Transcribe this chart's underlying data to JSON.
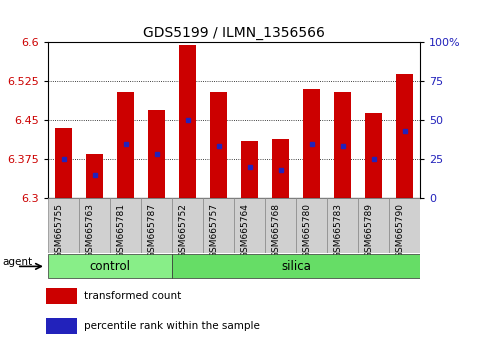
{
  "title": "GDS5199 / ILMN_1356566",
  "samples": [
    "GSM665755",
    "GSM665763",
    "GSM665781",
    "GSM665787",
    "GSM665752",
    "GSM665757",
    "GSM665764",
    "GSM665768",
    "GSM665780",
    "GSM665783",
    "GSM665789",
    "GSM665790"
  ],
  "groups": {
    "control": [
      0,
      1,
      2,
      3
    ],
    "silica": [
      4,
      5,
      6,
      7,
      8,
      9,
      10,
      11
    ]
  },
  "bar_tops": [
    6.435,
    6.385,
    6.505,
    6.47,
    6.595,
    6.505,
    6.41,
    6.415,
    6.51,
    6.505,
    6.465,
    6.54
  ],
  "bar_bottom": 6.3,
  "blue_dots": [
    6.375,
    6.345,
    6.405,
    6.385,
    6.45,
    6.4,
    6.36,
    6.355,
    6.405,
    6.4,
    6.375,
    6.43
  ],
  "ylim": [
    6.3,
    6.6
  ],
  "yticks_left": [
    6.3,
    6.375,
    6.45,
    6.525,
    6.6
  ],
  "yticks_right_vals": [
    0,
    25,
    50,
    75,
    100
  ],
  "yticks_right_labels": [
    "0",
    "25",
    "50",
    "75",
    "100%"
  ],
  "bar_color": "#cc0000",
  "dot_color": "#2222bb",
  "cell_bg": "#d0d0d0",
  "control_color": "#88ee88",
  "silica_color": "#66dd66",
  "grid_color": "#000000",
  "tick_label_color_left": "#cc0000",
  "tick_label_color_right": "#2222bb",
  "legend_items": [
    {
      "color": "#cc0000",
      "label": "transformed count"
    },
    {
      "color": "#2222bb",
      "label": "percentile rank within the sample"
    }
  ],
  "agent_label": "agent",
  "group_label_control": "control",
  "group_label_silica": "silica",
  "bar_width": 0.55,
  "figsize": [
    4.83,
    3.54
  ],
  "dpi": 100
}
